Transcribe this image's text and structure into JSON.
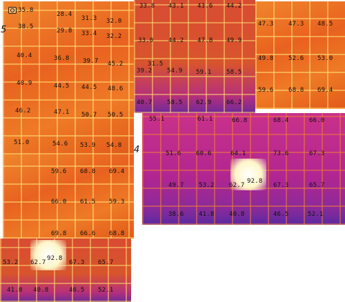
{
  "section_labels": {
    "left": "5",
    "right": "4"
  },
  "camera_icon": "thermal-camera-icon",
  "palette": {
    "hot": "#e8621f",
    "cool": "#b32690",
    "grid": "#ffe178"
  },
  "tiles": {
    "a": [
      "35.8",
      "28.4",
      "31.3",
      "32.0",
      "38.5",
      "29.8",
      "33.4",
      "32.2",
      "40.4",
      "36.8",
      "39.7",
      "45.2",
      "40.9",
      "44.5",
      "44.5",
      "48.6",
      "46.2",
      "47.1",
      "50.7",
      "50.5",
      "51.0",
      "54.6",
      "53.9",
      "54.8"
    ],
    "b": [
      "33.8",
      "43.1",
      "43.6",
      "44.2",
      "33.0",
      "44.2",
      "47.8",
      "49.9",
      "31.5",
      "39.2",
      "54.9",
      "59.1",
      "58.5",
      "40.7",
      "58.5",
      "62.9",
      "66.2"
    ],
    "c": [
      "47.3",
      "47.3",
      "48.5",
      "49.8",
      "52.6",
      "53.0",
      "59.6",
      "68.8",
      "69.4"
    ],
    "d": [
      "55.1",
      "61.1",
      "66.8",
      "68.4",
      "66.0",
      "51.6",
      "60.6",
      "64.1",
      "73.6",
      "67.3",
      "49.7",
      "53.2",
      "62.7",
      "92.8",
      "67.3",
      "65.7",
      "38.6",
      "41.8",
      "40.8",
      "46.5",
      "52.1"
    ],
    "e": [
      "59.6",
      "68.8",
      "69.4",
      "66.0",
      "61.5",
      "59.3",
      "69.8",
      "66.6",
      "68.8"
    ],
    "f": [
      "53.2",
      "62.7",
      "92.8",
      "67.3",
      "65.7",
      "41.8",
      "40.8",
      "46.5",
      "52.1"
    ]
  }
}
